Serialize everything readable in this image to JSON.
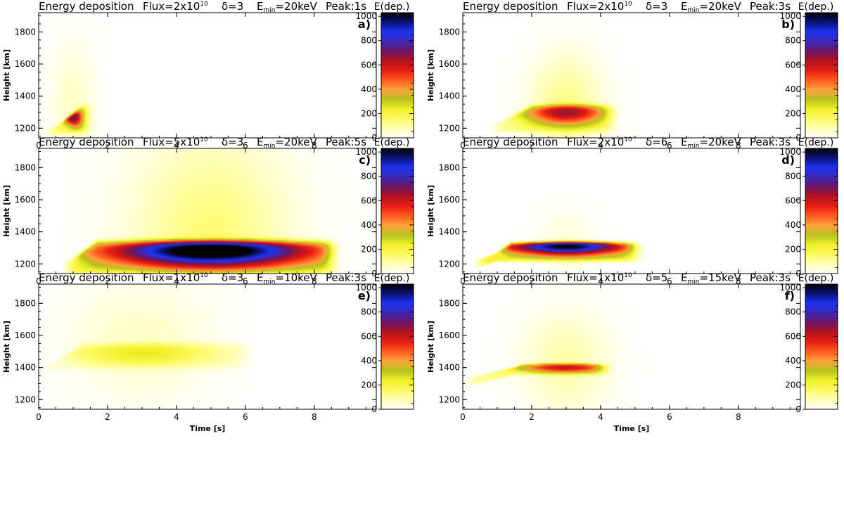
{
  "colors": {
    "colormap": [
      "#ffffff",
      "#ffffb4",
      "#fffa64",
      "#f0f028",
      "#b4c31e",
      "#ffa03c",
      "#ff5a1e",
      "#e61e14",
      "#b4141e",
      "#6e1464",
      "#3c28b4",
      "#1e32f0",
      "#0a1478",
      "#000000"
    ],
    "axis": "#000000"
  },
  "chart_data": [
    {
      "type": "heatmap",
      "panel_label": "a)",
      "title": {
        "prefix": "Energy deposition",
        "flux": "Flux=2x10",
        "flux_exp": "10",
        "delta": "δ=3",
        "emin_prefix": "E",
        "emin_sub": "min",
        "emin_value": "=20keV",
        "peak": "Peak:1s"
      },
      "xlabel": "Time [s]",
      "ylabel": "Height [km]",
      "xlim": [
        0,
        9.8
      ],
      "ylim": [
        1140,
        1920
      ],
      "xticks": [
        "0",
        "2",
        "4",
        "6",
        "8"
      ],
      "yticks": [
        "1200",
        "1400",
        "1600",
        "1800"
      ],
      "colorbar": {
        "label": "E(dep.)",
        "range": [
          0,
          1030
        ],
        "ticks": [
          "0",
          "200",
          "400",
          "600",
          "800",
          "1000"
        ]
      },
      "field": {
        "t_start": 0.4,
        "t_kink": 1.3,
        "t_end": 1.35,
        "tail_end": 2.0,
        "h_start": 1180,
        "h_kink": 1335,
        "h_bottom": 1180,
        "peak_t": 1.0,
        "peak_h": 1270,
        "peak_value": 720,
        "halo_value": 60,
        "halo_height": 380,
        "halo_time": 0.6
      }
    },
    {
      "type": "heatmap",
      "panel_label": "b)",
      "title": {
        "prefix": "Energy deposition",
        "flux": "Flux=2x10",
        "flux_exp": "10",
        "delta": "δ=3",
        "emin_prefix": "E",
        "emin_sub": "min",
        "emin_value": "=20keV",
        "peak": "Peak:3s"
      },
      "xlabel": "Time [s]",
      "ylabel": "Height [km]",
      "xlim": [
        0,
        9.8
      ],
      "ylim": [
        1140,
        1920
      ],
      "xticks": [
        "0",
        "2",
        "4",
        "6",
        "8"
      ],
      "yticks": [
        "1200",
        "1400",
        "1600",
        "1800"
      ],
      "colorbar": {
        "label": "E(dep.)",
        "range": [
          0,
          1030
        ],
        "ticks": [
          "0",
          "200",
          "400",
          "600",
          "800",
          "1000"
        ]
      },
      "field": {
        "t_start": 1.0,
        "t_kink": 2.0,
        "t_end": 4.3,
        "tail_end": 6.0,
        "h_start": 1220,
        "h_kink": 1330,
        "h_bottom": 1185,
        "peak_t": 3.0,
        "peak_h": 1305,
        "peak_value": 560,
        "halo_value": 120,
        "halo_height": 300,
        "halo_time": 1.0
      }
    },
    {
      "type": "heatmap",
      "panel_label": "c)",
      "title": {
        "prefix": "Energy deposition",
        "flux": "Flux=5x10",
        "flux_exp": "10",
        "delta": "δ=3",
        "emin_prefix": "E",
        "emin_sub": "min",
        "emin_value": "=20keV",
        "peak": "Peak:5s"
      },
      "xlabel": "Time [s]",
      "ylabel": "Height [km]",
      "xlim": [
        0,
        9.8
      ],
      "ylim": [
        1140,
        1920
      ],
      "xticks": [
        "0",
        "2",
        "4",
        "6",
        "8"
      ],
      "yticks": [
        "1200",
        "1400",
        "1600",
        "1800"
      ],
      "colorbar": {
        "label": "E(dep.)",
        "range": [
          0,
          1030
        ],
        "ticks": [
          "0",
          "200",
          "400",
          "600",
          "800",
          "1000"
        ]
      },
      "field": {
        "t_start": 0.9,
        "t_kink": 1.7,
        "t_end": 8.5,
        "tail_end": 9.8,
        "h_start": 1210,
        "h_kink": 1330,
        "h_bottom": 1150,
        "peak_t": 5.0,
        "peak_h": 1285,
        "peak_value": 1030,
        "halo_value": 140,
        "halo_height": 650,
        "halo_time": 2.2
      }
    },
    {
      "type": "heatmap",
      "panel_label": "d)",
      "title": {
        "prefix": "Energy deposition",
        "flux": "Flux=2x10",
        "flux_exp": "10",
        "delta": "δ=6",
        "emin_prefix": "E",
        "emin_sub": "min",
        "emin_value": "=20keV",
        "peak": "Peak:3s"
      },
      "xlabel": "Time [s]",
      "ylabel": "Height [km]",
      "xlim": [
        0,
        9.8
      ],
      "ylim": [
        1140,
        1920
      ],
      "xticks": [
        "0",
        "2",
        "4",
        "6",
        "8"
      ],
      "yticks": [
        "1200",
        "1400",
        "1600",
        "1800"
      ],
      "colorbar": {
        "label": "E(dep.)",
        "range": [
          0,
          1030
        ],
        "ticks": [
          "0",
          "200",
          "400",
          "600",
          "800",
          "1000"
        ]
      },
      "field": {
        "t_start": 0.5,
        "t_kink": 1.4,
        "t_end": 5.0,
        "tail_end": 6.0,
        "h_start": 1190,
        "h_kink": 1320,
        "h_bottom": 1225,
        "peak_t": 3.0,
        "peak_h": 1315,
        "peak_value": 1030,
        "halo_value": 40,
        "halo_height": 200,
        "halo_time": 0.8
      }
    },
    {
      "type": "heatmap",
      "panel_label": "e)",
      "title": {
        "prefix": "Energy deposition",
        "flux": "Flux=1x10",
        "flux_exp": "10",
        "delta": "δ=3",
        "emin_prefix": "E",
        "emin_sub": "min",
        "emin_value": "=10keV",
        "peak": "Peak:3s"
      },
      "xlabel": "Time [s]",
      "ylabel": "Height [km]",
      "xlim": [
        0,
        9.8
      ],
      "ylim": [
        1140,
        1920
      ],
      "xticks": [
        "0",
        "2",
        "4",
        "6",
        "8"
      ],
      "yticks": [
        "1200",
        "1400",
        "1600",
        "1800"
      ],
      "colorbar": {
        "label": "E(dep.)",
        "range": [
          0,
          1030
        ],
        "ticks": [
          "0",
          "200",
          "400",
          "600",
          "800",
          "1000"
        ]
      },
      "field": {
        "t_start": 0.3,
        "t_kink": 1.3,
        "t_end": 6.0,
        "tail_end": 6.0,
        "h_start": 1400,
        "h_kink": 1540,
        "h_bottom": 1400,
        "peak_t": 3.0,
        "peak_h": 1490,
        "peak_value": 190,
        "halo_value": 60,
        "halo_height": 350,
        "halo_time": 2.0
      }
    },
    {
      "type": "heatmap",
      "panel_label": "f)",
      "title": {
        "prefix": "Energy deposition",
        "flux": "Flux=1x10",
        "flux_exp": "10",
        "delta": "δ=5",
        "emin_prefix": "E",
        "emin_sub": "min",
        "emin_value": "=15keV",
        "peak": "Peak:3s"
      },
      "xlabel": "Time [s]",
      "ylabel": "Height [km]",
      "xlim": [
        0,
        9.8
      ],
      "ylim": [
        1140,
        1920
      ],
      "xticks": [
        "0",
        "2",
        "4",
        "6",
        "8"
      ],
      "yticks": [
        "1200",
        "1400",
        "1600",
        "1800"
      ],
      "colorbar": {
        "label": "E(dep.)",
        "range": [
          0,
          1030
        ],
        "ticks": [
          "0",
          "200",
          "400",
          "600",
          "800",
          "1000"
        ]
      },
      "field": {
        "t_start": 0.2,
        "t_kink": 1.7,
        "t_end": 4.1,
        "tail_end": 6.0,
        "h_start": 1260,
        "h_kink": 1410,
        "h_bottom": 1365,
        "peak_t": 3.0,
        "peak_h": 1400,
        "peak_value": 520,
        "halo_value": 90,
        "halo_height": 300,
        "halo_time": 1.2
      }
    }
  ]
}
